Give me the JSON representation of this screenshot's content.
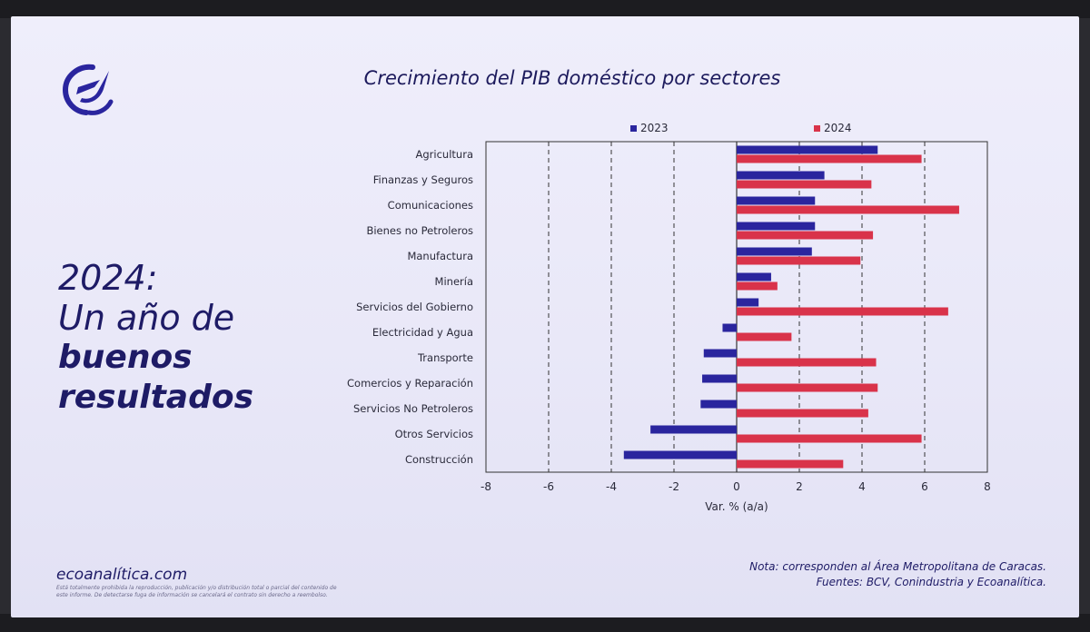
{
  "slide": {
    "headline_line1": "2024:",
    "headline_line2": "Un año de",
    "headline_line3": "buenos",
    "headline_line4": "resultados",
    "website": "ecoanalítica.com",
    "disclaimer": "Está totalmente prohibida la reproducción, publicación y/o distribución total o parcial del contenido de este informe. De detectarse fuga de información se cancelará el contrato sin derecho a reembolso.",
    "note_line1": "Nota: corresponden al Área Metropolitana de Caracas.",
    "note_line2": "Fuentes: BCV, Conindustria y Ecoanalítica."
  },
  "colors": {
    "series_2023": "#2a259e",
    "series_2024": "#d9334a",
    "headline": "#1e1b66"
  },
  "chart_data": {
    "type": "bar",
    "orientation": "horizontal",
    "title": "Crecimiento del PIB doméstico por sectores",
    "xlabel": "Var. % (a/a)",
    "ylabel": "",
    "xlim": [
      -8,
      8
    ],
    "xticks": [
      -8,
      -6,
      -4,
      -2,
      0,
      2,
      4,
      6,
      8
    ],
    "grid": "vertical-dashed",
    "legend_position": "top",
    "categories": [
      "Agricultura",
      "Finanzas y Seguros",
      "Comunicaciones",
      "Bienes no Petroleros",
      "Manufactura",
      "Minería",
      "Servicios del Gobierno",
      "Electricidad y Agua",
      "Transporte",
      "Comercios y Reparación",
      "Servicios No Petroleros",
      "Otros Servicios",
      "Construcción"
    ],
    "series": [
      {
        "name": "2023",
        "values": [
          4.5,
          2.8,
          2.5,
          2.5,
          2.4,
          1.1,
          0.7,
          -0.45,
          -1.05,
          -1.1,
          -1.15,
          -2.75,
          -3.6
        ]
      },
      {
        "name": "2024",
        "values": [
          5.9,
          4.3,
          7.1,
          4.35,
          3.95,
          1.3,
          6.75,
          1.75,
          4.45,
          4.5,
          4.2,
          5.9,
          3.4
        ]
      }
    ]
  }
}
